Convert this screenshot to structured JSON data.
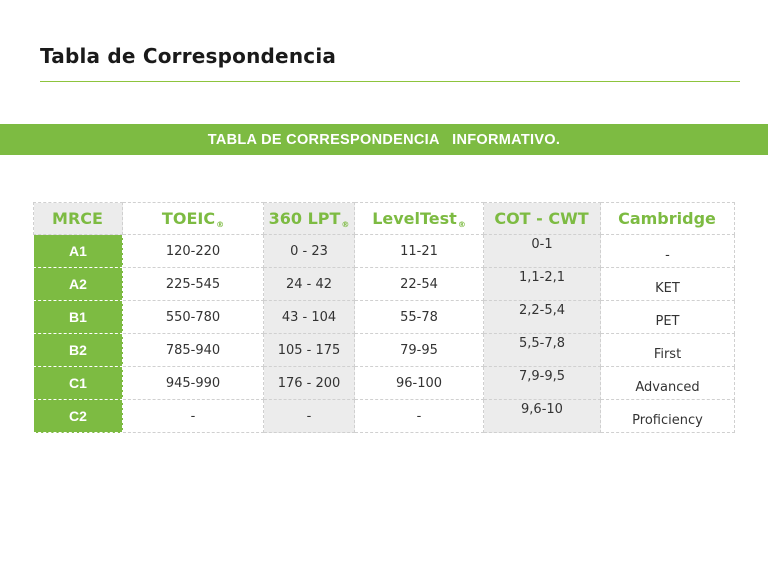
{
  "page_title": "Tabla de Correspondencia",
  "banner": "TABLA DE CORRESPONDENCIA   INFORMATIVO.",
  "table": {
    "headers": [
      "MRCE",
      "TOEIC",
      "360 LPT",
      "LevelTest",
      "COT - CWT",
      "Cambridge"
    ],
    "header_marks": [
      "",
      "®",
      "®",
      "®",
      "",
      ""
    ],
    "rows": [
      {
        "level": "A1",
        "toeic": "120-220",
        "lpt": "0 - 23",
        "leveltest": "11-21",
        "cot": "0-1",
        "cambridge": "-"
      },
      {
        "level": "A2",
        "toeic": "225-545",
        "lpt": "24 - 42",
        "leveltest": "22-54",
        "cot": "1,1-2,1",
        "cambridge": "KET"
      },
      {
        "level": "B1",
        "toeic": "550-780",
        "lpt": "43 - 104",
        "leveltest": "55-78",
        "cot": "2,2-5,4",
        "cambridge": "PET"
      },
      {
        "level": "B2",
        "toeic": "785-940",
        "lpt": "105 - 175",
        "leveltest": "79-95",
        "cot": "5,5-7,8",
        "cambridge": "First"
      },
      {
        "level": "C1",
        "toeic": "945-990",
        "lpt": "176 - 200",
        "leveltest": "96-100",
        "cot": "7,9-9,5",
        "cambridge": "Advanced"
      },
      {
        "level": "C2",
        "toeic": "-",
        "lpt": "-",
        "leveltest": "-",
        "cot": "9,6-10",
        "cambridge": "Proficiency"
      }
    ]
  },
  "colors": {
    "accent": "#7dbb42",
    "shade": "#ececec",
    "text": "#333333"
  }
}
